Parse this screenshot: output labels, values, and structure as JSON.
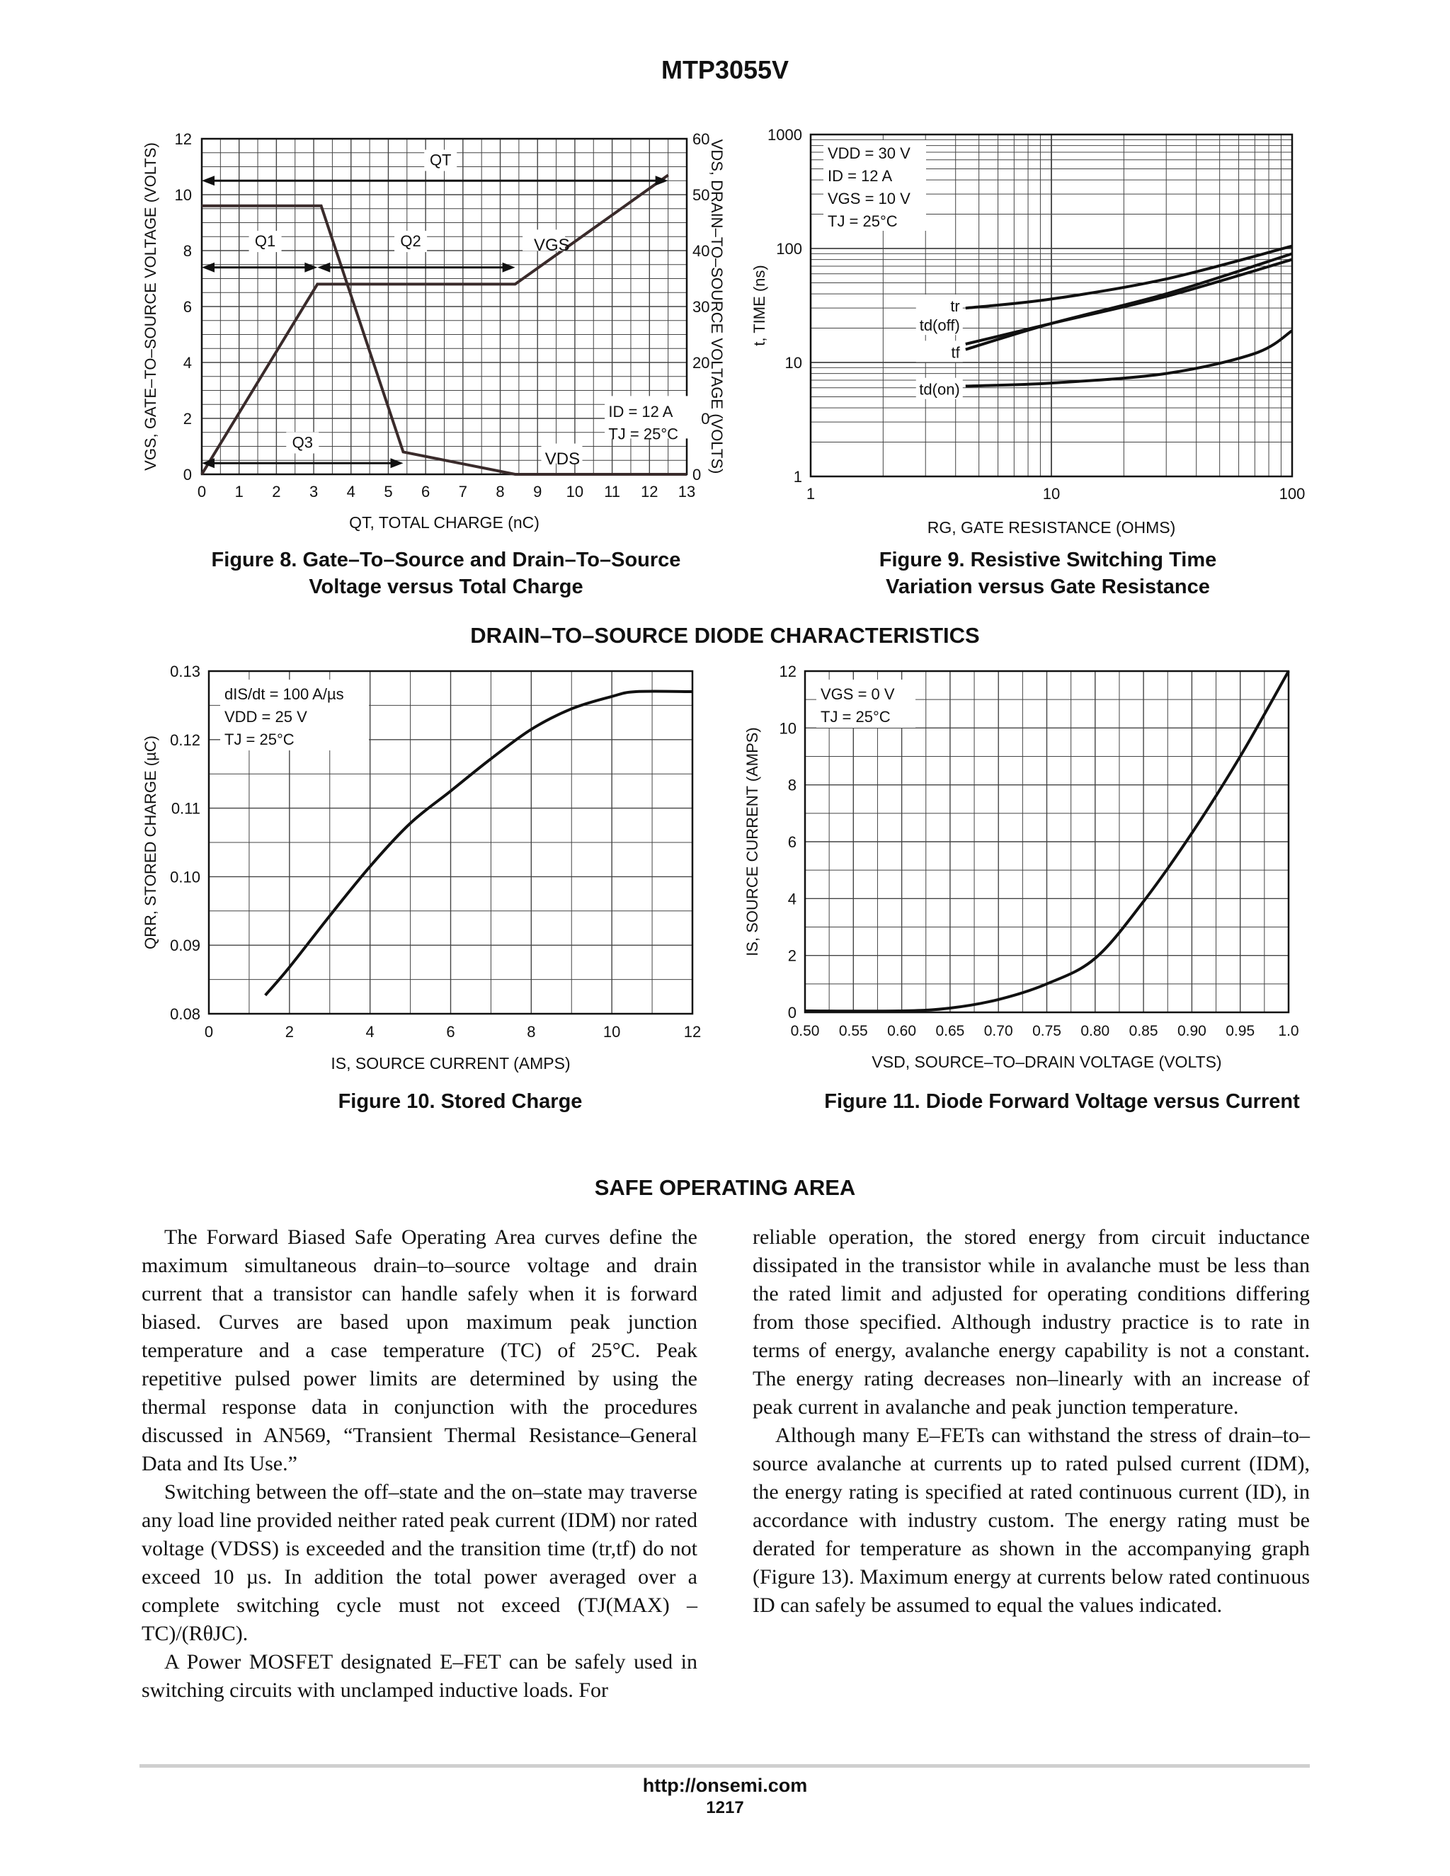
{
  "header": {
    "part_number": "MTP3055V"
  },
  "fig8": {
    "caption_line1": "Figure 8. Gate–To–Source and Drain–To–Source",
    "caption_line2": "Voltage versus Total Charge",
    "ylabel_left": "VGS, GATE–TO–SOURCE VOLTAGE (VOLTS)",
    "ylabel_right": "VDS, DRAIN–TO–SOURCE VOLTAGE (VOLTS)",
    "xlabel": "QT, TOTAL CHARGE (nC)",
    "x_ticks": [
      "0",
      "1",
      "2",
      "3",
      "4",
      "5",
      "6",
      "7",
      "8",
      "9",
      "10",
      "11",
      "12",
      "13"
    ],
    "y_left_ticks": [
      "0",
      "2",
      "4",
      "6",
      "8",
      "10",
      "12"
    ],
    "y_right_ticks": [
      "0",
      "10",
      "20",
      "30",
      "40",
      "50",
      "60"
    ],
    "annotations": {
      "qt": "QT",
      "q1": "Q1",
      "q2": "Q2",
      "q3": "Q3",
      "vgs": "VGS",
      "vds": "VDS",
      "id": "ID = 12 A",
      "tj": "TJ = 25°C"
    }
  },
  "fig9": {
    "caption_line1": "Figure 9. Resistive Switching Time",
    "caption_line2": "Variation versus Gate Resistance",
    "ylabel": "t, TIME (ns)",
    "xlabel": "RG, GATE RESISTANCE (OHMS)",
    "x_ticks": [
      "1",
      "10",
      "100"
    ],
    "y_ticks": [
      "1",
      "10",
      "100",
      "1000"
    ],
    "conditions": [
      "VDD = 30 V",
      "ID = 12 A",
      "VGS = 10 V",
      "TJ = 25°C"
    ],
    "curve_labels": {
      "tr": "tr",
      "tdoff": "td(off)",
      "tf": "tf",
      "tdon": "td(on)"
    }
  },
  "section_diode": "DRAIN–TO–SOURCE DIODE CHARACTERISTICS",
  "fig10": {
    "caption": "Figure 10. Stored Charge",
    "ylabel": "QRR, STORED CHARGE (µC)",
    "xlabel": "IS, SOURCE CURRENT (AMPS)",
    "x_ticks": [
      "0",
      "2",
      "4",
      "6",
      "8",
      "10",
      "12"
    ],
    "y_ticks": [
      "0.08",
      "0.09",
      "0.10",
      "0.11",
      "0.12",
      "0.13"
    ],
    "conditions": [
      "dIS/dt = 100 A/µs",
      "VDD = 25 V",
      "TJ = 25°C"
    ]
  },
  "fig11": {
    "caption": "Figure 11. Diode Forward Voltage versus Current",
    "ylabel": "IS, SOURCE CURRENT (AMPS)",
    "xlabel": "VSD, SOURCE–TO–DRAIN VOLTAGE (VOLTS)",
    "x_ticks": [
      "0.50",
      "0.55",
      "0.60",
      "0.65",
      "0.70",
      "0.75",
      "0.80",
      "0.85",
      "0.90",
      "0.95",
      "1.0"
    ],
    "y_ticks": [
      "0",
      "2",
      "4",
      "6",
      "8",
      "10",
      "12"
    ],
    "conditions": [
      "VGS = 0 V",
      "TJ = 25°C"
    ]
  },
  "section_soa": "SAFE OPERATING AREA",
  "body": {
    "left": [
      "The Forward Biased Safe Operating Area curves define the maximum simultaneous drain–to–source voltage and drain current that a transistor can handle safely when it is forward biased. Curves are based upon maximum peak junction temperature and a case temperature (TC) of 25°C. Peak repetitive pulsed power limits are determined by using the thermal response data in conjunction with the procedures discussed in AN569, “Transient Thermal Resistance–General Data and Its Use.”",
      "Switching between the off–state and the on–state may traverse any load line provided neither rated peak current (IDM) nor rated voltage (VDSS) is exceeded and the transition time (tr,tf) do not exceed 10 µs. In addition the total power averaged over a complete switching cycle must not exceed (TJ(MAX) – TC)/(RθJC).",
      "A Power MOSFET designated E–FET can be safely used in switching circuits with unclamped inductive loads. For"
    ],
    "right": [
      "reliable operation, the stored energy from circuit inductance dissipated in the transistor while in avalanche must be less than the rated limit and adjusted for operating conditions differing from those specified. Although industry practice is to rate in terms of energy, avalanche energy capability is not a constant. The energy rating decreases non–linearly with an increase of peak current in avalanche and peak junction temperature.",
      "Although many E–FETs can withstand the stress of drain–to–source avalanche at currents up to rated pulsed current (IDM), the energy rating is specified at rated continuous current (ID), in accordance with industry custom. The energy rating must be derated for temperature as shown in the accompanying graph (Figure 13). Maximum energy at currents below rated continuous ID can safely be assumed to equal the values indicated."
    ]
  },
  "footer": {
    "url": "http://onsemi.com",
    "page": "1217"
  },
  "chart_data": [
    {
      "type": "line",
      "title": "",
      "xlabel": "QT, TOTAL CHARGE (nC)",
      "ylabel": "VGS, GATE–TO–SOURCE VOLTAGE (VOLTS)",
      "y2label": "VDS, DRAIN–TO–SOURCE VOLTAGE (VOLTS)",
      "xlim": [
        0,
        13
      ],
      "ylim": [
        0,
        12
      ],
      "y2lim": [
        0,
        60
      ],
      "series": [
        {
          "name": "VGS",
          "x": [
            0,
            3.1,
            8.4,
            12.5
          ],
          "y": [
            0,
            6.8,
            6.8,
            10.7
          ]
        },
        {
          "name": "VDS",
          "axis": "right",
          "x": [
            0,
            3.2,
            5.4,
            8.4,
            13
          ],
          "y": [
            48,
            48,
            4,
            0,
            0
          ]
        }
      ]
    },
    {
      "type": "line",
      "xlabel": "RG, GATE RESISTANCE (OHMS)",
      "ylabel": "t, TIME (ns)",
      "xscale": "log",
      "yscale": "log",
      "xlim": [
        1,
        100
      ],
      "ylim": [
        1,
        1000
      ],
      "series": [
        {
          "name": "tr",
          "x": [
            4.4,
            10,
            30,
            100
          ],
          "y": [
            30,
            36,
            54,
            105
          ]
        },
        {
          "name": "td(off)",
          "x": [
            4.4,
            10,
            30,
            100
          ],
          "y": [
            13,
            22,
            40,
            90
          ]
        },
        {
          "name": "tf",
          "x": [
            4.4,
            10,
            30,
            100
          ],
          "y": [
            14.5,
            22,
            38,
            80
          ]
        },
        {
          "name": "td(on)",
          "x": [
            4.4,
            10,
            30,
            70,
            100
          ],
          "y": [
            6.2,
            6.6,
            8,
            12,
            19
          ]
        }
      ]
    },
    {
      "type": "line",
      "xlabel": "IS, SOURCE CURRENT (AMPS)",
      "ylabel": "QRR, STORED CHARGE (µC)",
      "xlim": [
        0,
        12
      ],
      "ylim": [
        0.08,
        0.13
      ],
      "series": [
        {
          "name": "",
          "x": [
            1.4,
            2,
            3,
            4,
            5,
            6,
            7,
            8,
            9,
            10,
            10.6,
            12
          ],
          "y": [
            0.0827,
            0.0868,
            0.0943,
            0.1015,
            0.1078,
            0.1125,
            0.1172,
            0.1215,
            0.1245,
            0.1263,
            0.127,
            0.127
          ]
        }
      ]
    },
    {
      "type": "line",
      "xlabel": "VSD, SOURCE–TO–DRAIN VOLTAGE (VOLTS)",
      "ylabel": "IS, SOURCE CURRENT (AMPS)",
      "xlim": [
        0.5,
        1.0
      ],
      "ylim": [
        0,
        12
      ],
      "series": [
        {
          "name": "",
          "x": [
            0.5,
            0.6,
            0.65,
            0.7,
            0.75,
            0.8,
            0.85,
            0.9,
            0.95,
            1.0
          ],
          "y": [
            0.05,
            0.05,
            0.15,
            0.45,
            1.0,
            1.9,
            3.9,
            6.3,
            9.0,
            12.0
          ]
        }
      ]
    }
  ]
}
